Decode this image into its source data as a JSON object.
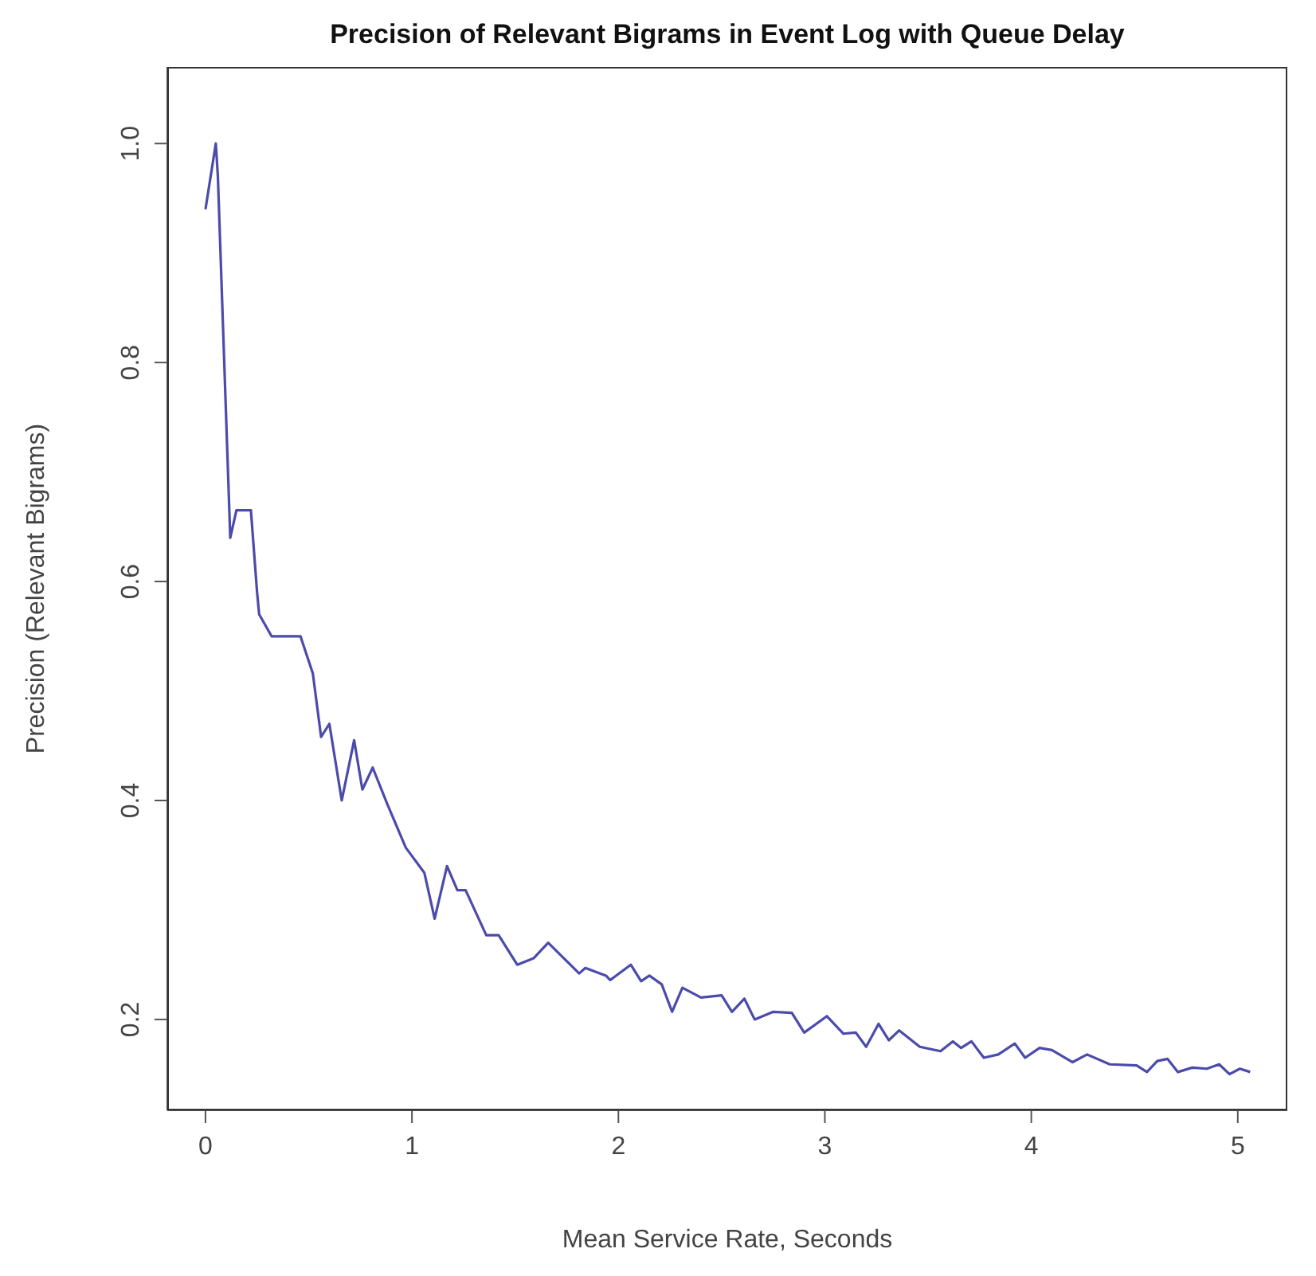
{
  "chart_data": {
    "type": "line",
    "title": "Precision of Relevant Bigrams in Event Log with Queue Delay",
    "xlabel": "Mean Service Rate, Seconds",
    "ylabel": "Precision (Relevant Bigrams)",
    "series": [
      {
        "color": "#4b4bab",
        "x": [
          0,
          0.05,
          0.06,
          0.12,
          0.15,
          0.22,
          0.25,
          0.26,
          0.32,
          0.46,
          0.52,
          0.56,
          0.6,
          0.66,
          0.72,
          0.76,
          0.81,
          0.88,
          0.97,
          1.06,
          1.11,
          1.17,
          1.22,
          1.26,
          1.36,
          1.42,
          1.51,
          1.59,
          1.66,
          1.81,
          1.84,
          1.94,
          1.96,
          2.06,
          2.11,
          2.15,
          2.21,
          2.26,
          2.31,
          2.4,
          2.5,
          2.55,
          2.61,
          2.66,
          2.75,
          2.84,
          2.9,
          3.01,
          3.09,
          3.15,
          3.2,
          3.26,
          3.31,
          3.36,
          3.46,
          3.56,
          3.62,
          3.66,
          3.71,
          3.77,
          3.84,
          3.92,
          3.97,
          4.04,
          4.1,
          4.2,
          4.27,
          4.38,
          4.51,
          4.56,
          4.61,
          4.66,
          4.71,
          4.78,
          4.85,
          4.91,
          4.96,
          5.01,
          5.06
        ],
        "values": [
          0.94,
          1.0,
          0.97,
          0.64,
          0.665,
          0.665,
          0.59,
          0.57,
          0.55,
          0.55,
          0.516,
          0.458,
          0.47,
          0.4,
          0.455,
          0.41,
          0.43,
          0.397,
          0.357,
          0.334,
          0.292,
          0.34,
          0.318,
          0.318,
          0.277,
          0.277,
          0.25,
          0.256,
          0.27,
          0.242,
          0.247,
          0.24,
          0.236,
          0.25,
          0.235,
          0.24,
          0.232,
          0.207,
          0.229,
          0.22,
          0.222,
          0.207,
          0.219,
          0.2,
          0.207,
          0.206,
          0.188,
          0.203,
          0.187,
          0.188,
          0.175,
          0.196,
          0.181,
          0.19,
          0.175,
          0.171,
          0.18,
          0.174,
          0.18,
          0.165,
          0.168,
          0.178,
          0.165,
          0.174,
          0.172,
          0.161,
          0.168,
          0.159,
          0.158,
          0.152,
          0.162,
          0.164,
          0.152,
          0.156,
          0.155,
          0.159,
          0.15,
          0.155,
          0.152
        ]
      }
    ],
    "xlim": [
      -0.185,
      5.24
    ],
    "ylim": [
      0.117,
      1.07
    ],
    "xticks": [
      0,
      1,
      2,
      3,
      4,
      5
    ],
    "yticks": [
      0.2,
      0.4,
      0.6,
      0.8,
      {
        "value": 1.0,
        "label": "1.0"
      }
    ],
    "line_style": "solid",
    "marker": "none",
    "grid": false,
    "legend": false
  }
}
